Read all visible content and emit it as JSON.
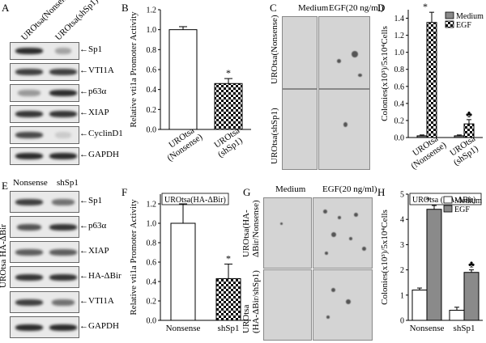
{
  "panels": {
    "A": {
      "label": "A",
      "lanes": [
        "UROtsa(Nonsense)",
        "UROtsa(shSp1)"
      ],
      "rows": [
        "Sp1",
        "VTI1A",
        "p63α",
        "XIAP",
        "CyclinD1",
        "GAPDH"
      ]
    },
    "E": {
      "label": "E",
      "lanes": [
        "Nonsense",
        "shSp1"
      ],
      "side_label": "UROtsa HA-ΔBir",
      "rows": [
        "Sp1",
        "p63α",
        "XIAP",
        "HA-ΔBir",
        "VTI1A",
        "GAPDH"
      ]
    },
    "C": {
      "label": "C",
      "col_headers": [
        "Medium",
        "EGF(20 ng/ml)"
      ],
      "row_labels": [
        "UROtsa(Nonsense)",
        "UROtsa(shSp1)"
      ]
    },
    "G": {
      "label": "G",
      "col_headers": [
        "Medium",
        "EGF(20 ng/ml)"
      ],
      "row_labels": [
        "UROtsa(HA-ΔBir/Nonsense)",
        "UROtsa (HA-ΔBir/shSp1)"
      ],
      "row_labels_l1": [
        "UROtsa(HA-",
        "UROtsa"
      ],
      "row_labels_l2": [
        "ΔBir/Nonsense)",
        "(HA-ΔBir/shSp1)"
      ]
    }
  },
  "chart_data": [
    {
      "panel": "B",
      "type": "bar",
      "ylabel": "Relative vti1a Promoter Activity",
      "categories": [
        "UROtsa (Nonsense)",
        "UROtsa (shSp1)"
      ],
      "cat_line1": [
        "UROtsa",
        "UROtsa"
      ],
      "cat_line2": [
        "(Nonsense)",
        "(shSp1)"
      ],
      "values": [
        1.0,
        0.46
      ],
      "errors": [
        0.03,
        0.05
      ],
      "ylim": [
        0,
        1.2
      ],
      "yticks": [
        "0.0",
        "0.2",
        "0.4",
        "0.6",
        "0.8",
        "1.0",
        "1.2"
      ],
      "annotation": "*",
      "fills": [
        "white",
        "checker"
      ]
    },
    {
      "panel": "D",
      "type": "bar",
      "ylabel": "Colonies(x10³)/5x10⁴Cells",
      "categories": [
        "UROtsa (Nonsense)",
        "UROtsa (shSp1)"
      ],
      "cat_line1": [
        "UROtsa",
        "UROtsa"
      ],
      "cat_line2": [
        "(Nonsense)",
        "(shSp1)"
      ],
      "series": [
        {
          "name": "Medium",
          "values": [
            0.02,
            0.02
          ],
          "errors": [
            0.01,
            0.01
          ],
          "fill": "gray"
        },
        {
          "name": "EGF",
          "values": [
            1.35,
            0.16
          ],
          "errors": [
            0.12,
            0.05
          ],
          "fill": "checker"
        }
      ],
      "ylim": [
        0,
        1.5
      ],
      "yticks": [
        "0.0",
        "0.2",
        "0.4",
        "0.6",
        "0.8",
        "1.0",
        "1.2",
        "1.4"
      ],
      "annotations": [
        "*",
        "♣"
      ]
    },
    {
      "panel": "F",
      "type": "bar",
      "title": "UROtsa(HA-ΔBir)",
      "ylabel": "Relative vti1a Promoter Activity",
      "categories": [
        "Nonsense",
        "shSp1"
      ],
      "values": [
        1.0,
        0.43
      ],
      "errors": [
        0.2,
        0.15
      ],
      "ylim": [
        0,
        1.3
      ],
      "yticks": [
        "0.0",
        "0.2",
        "0.4",
        "0.6",
        "0.8",
        "1.0",
        "1.2"
      ],
      "annotation": "*",
      "fills": [
        "white",
        "checker"
      ]
    },
    {
      "panel": "H",
      "type": "bar",
      "title": "UROtsa (HA-ΔBir)",
      "ylabel": "Colonies(x10³)/5x10⁴Cells",
      "categories": [
        "Nonsense",
        "shSp1"
      ],
      "series": [
        {
          "name": "Medium",
          "values": [
            1.2,
            0.4
          ],
          "errors": [
            0.08,
            0.12
          ],
          "fill": "white"
        },
        {
          "name": "EGF",
          "values": [
            4.4,
            1.9
          ],
          "errors": [
            0.15,
            0.1
          ],
          "fill": "gray"
        }
      ],
      "ylim": [
        0,
        5
      ],
      "yticks": [
        "0",
        "1",
        "2",
        "3",
        "4",
        "5"
      ],
      "annotations": [
        "*",
        "♣"
      ]
    }
  ]
}
